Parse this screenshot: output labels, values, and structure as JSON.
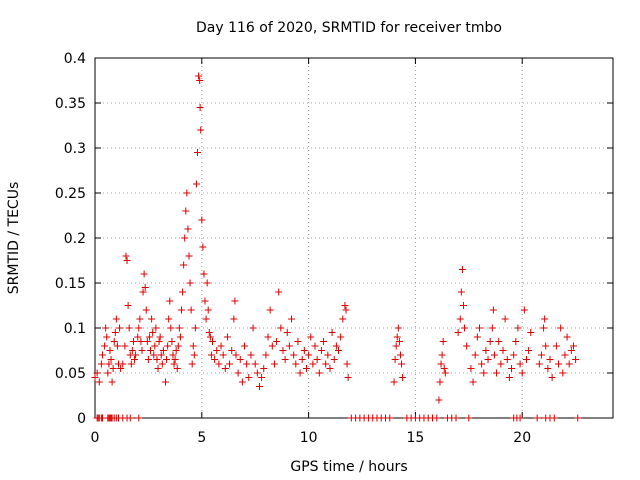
{
  "chart_data": {
    "type": "scatter",
    "title": "Day 116 of 2020, SRMTID for receiver tmbo",
    "xlabel": "GPS time / hours",
    "ylabel": "SRMTID / TECUs",
    "xlim": [
      0,
      24.25
    ],
    "ylim": [
      0,
      0.4
    ],
    "xticks": [
      0,
      5,
      10,
      15,
      20
    ],
    "yticks": [
      0,
      0.05,
      0.1,
      0.15,
      0.2,
      0.25,
      0.3,
      0.35,
      0.4
    ],
    "xtick_labels": [
      "0",
      "5",
      "10",
      "15",
      "20"
    ],
    "ytick_labels": [
      "0",
      "0.05",
      "0.1",
      "0.15",
      "0.2",
      "0.25",
      "0.3",
      "0.35",
      "0.4"
    ],
    "grid": true,
    "marker": "+",
    "color": "#dd0000",
    "series": [
      {
        "name": "SRMTID",
        "points": [
          [
            0.0,
            0.045
          ],
          [
            0.1,
            0.05
          ],
          [
            0.2,
            0.04
          ],
          [
            0.3,
            0.06
          ],
          [
            0.35,
            0.07
          ],
          [
            0.45,
            0.08
          ],
          [
            0.5,
            0.1
          ],
          [
            0.55,
            0.09
          ],
          [
            0.6,
            0.05
          ],
          [
            0.65,
            0.06
          ],
          [
            0.7,
            0.075
          ],
          [
            0.75,
            0.065
          ],
          [
            0.8,
            0.04
          ],
          [
            0.85,
            0.055
          ],
          [
            0.9,
            0.085
          ],
          [
            0.95,
            0.095
          ],
          [
            1.0,
            0.11
          ],
          [
            1.05,
            0.08
          ],
          [
            1.1,
            0.06
          ],
          [
            1.15,
            0.1
          ],
          [
            1.2,
            0.055
          ],
          [
            1.3,
            0.06
          ],
          [
            1.4,
            0.08
          ],
          [
            1.45,
            0.18
          ],
          [
            1.5,
            0.175
          ],
          [
            1.55,
            0.125
          ],
          [
            1.6,
            0.1
          ],
          [
            1.65,
            0.07
          ],
          [
            1.7,
            0.06
          ],
          [
            1.75,
            0.075
          ],
          [
            1.8,
            0.085
          ],
          [
            1.85,
            0.065
          ],
          [
            1.9,
            0.07
          ],
          [
            2.0,
            0.09
          ],
          [
            2.05,
            0.1
          ],
          [
            2.1,
            0.11
          ],
          [
            2.15,
            0.085
          ],
          [
            2.2,
            0.075
          ],
          [
            2.25,
            0.14
          ],
          [
            2.3,
            0.16
          ],
          [
            2.35,
            0.145
          ],
          [
            2.4,
            0.12
          ],
          [
            2.45,
            0.085
          ],
          [
            2.5,
            0.065
          ],
          [
            2.55,
            0.09
          ],
          [
            2.6,
            0.075
          ],
          [
            2.65,
            0.11
          ],
          [
            2.7,
            0.095
          ],
          [
            2.75,
            0.07
          ],
          [
            2.8,
            0.08
          ],
          [
            2.85,
            0.1
          ],
          [
            2.9,
            0.065
          ],
          [
            2.95,
            0.055
          ],
          [
            3.0,
            0.085
          ],
          [
            3.05,
            0.09
          ],
          [
            3.1,
            0.07
          ],
          [
            3.15,
            0.06
          ],
          [
            3.2,
            0.075
          ],
          [
            3.3,
            0.04
          ],
          [
            3.35,
            0.065
          ],
          [
            3.4,
            0.08
          ],
          [
            3.45,
            0.11
          ],
          [
            3.5,
            0.13
          ],
          [
            3.55,
            0.1
          ],
          [
            3.6,
            0.085
          ],
          [
            3.65,
            0.07
          ],
          [
            3.7,
            0.06
          ],
          [
            3.75,
            0.065
          ],
          [
            3.8,
            0.075
          ],
          [
            3.85,
            0.055
          ],
          [
            3.9,
            0.08
          ],
          [
            3.95,
            0.1
          ],
          [
            4.0,
            0.09
          ],
          [
            4.05,
            0.12
          ],
          [
            4.1,
            0.14
          ],
          [
            4.15,
            0.17
          ],
          [
            4.2,
            0.2
          ],
          [
            4.25,
            0.23
          ],
          [
            4.3,
            0.25
          ],
          [
            4.35,
            0.21
          ],
          [
            4.4,
            0.18
          ],
          [
            4.45,
            0.15
          ],
          [
            4.5,
            0.12
          ],
          [
            4.55,
            0.06
          ],
          [
            4.6,
            0.08
          ],
          [
            4.65,
            0.07
          ],
          [
            4.7,
            0.1
          ],
          [
            4.75,
            0.26
          ],
          [
            4.8,
            0.295
          ],
          [
            4.85,
            0.38
          ],
          [
            4.9,
            0.375
          ],
          [
            4.92,
            0.345
          ],
          [
            4.95,
            0.32
          ],
          [
            5.0,
            0.22
          ],
          [
            5.05,
            0.19
          ],
          [
            5.1,
            0.16
          ],
          [
            5.15,
            0.13
          ],
          [
            5.2,
            0.11
          ],
          [
            5.25,
            0.15
          ],
          [
            5.3,
            0.12
          ],
          [
            5.35,
            0.095
          ],
          [
            5.4,
            0.09
          ],
          [
            5.45,
            0.07
          ],
          [
            5.5,
            0.085
          ],
          [
            5.6,
            0.065
          ],
          [
            5.7,
            0.075
          ],
          [
            5.8,
            0.06
          ],
          [
            5.9,
            0.08
          ],
          [
            6.0,
            0.07
          ],
          [
            6.1,
            0.055
          ],
          [
            6.2,
            0.09
          ],
          [
            6.3,
            0.06
          ],
          [
            6.4,
            0.075
          ],
          [
            6.5,
            0.11
          ],
          [
            6.55,
            0.13
          ],
          [
            6.6,
            0.07
          ],
          [
            6.7,
            0.05
          ],
          [
            6.8,
            0.065
          ],
          [
            6.9,
            0.04
          ],
          [
            7.0,
            0.08
          ],
          [
            7.1,
            0.06
          ],
          [
            7.2,
            0.045
          ],
          [
            7.3,
            0.07
          ],
          [
            7.4,
            0.1
          ],
          [
            7.5,
            0.06
          ],
          [
            7.6,
            0.05
          ],
          [
            7.7,
            0.035
          ],
          [
            7.8,
            0.045
          ],
          [
            7.9,
            0.055
          ],
          [
            8.0,
            0.07
          ],
          [
            8.1,
            0.09
          ],
          [
            8.2,
            0.12
          ],
          [
            8.3,
            0.08
          ],
          [
            8.4,
            0.06
          ],
          [
            8.5,
            0.085
          ],
          [
            8.6,
            0.14
          ],
          [
            8.7,
            0.1
          ],
          [
            8.8,
            0.075
          ],
          [
            8.9,
            0.065
          ],
          [
            9.0,
            0.095
          ],
          [
            9.1,
            0.08
          ],
          [
            9.2,
            0.11
          ],
          [
            9.3,
            0.07
          ],
          [
            9.4,
            0.06
          ],
          [
            9.5,
            0.085
          ],
          [
            9.6,
            0.05
          ],
          [
            9.7,
            0.065
          ],
          [
            9.8,
            0.075
          ],
          [
            9.9,
            0.055
          ],
          [
            10.0,
            0.07
          ],
          [
            10.1,
            0.09
          ],
          [
            10.2,
            0.06
          ],
          [
            10.3,
            0.08
          ],
          [
            10.4,
            0.065
          ],
          [
            10.5,
            0.05
          ],
          [
            10.6,
            0.075
          ],
          [
            10.7,
            0.085
          ],
          [
            10.8,
            0.06
          ],
          [
            10.9,
            0.07
          ],
          [
            11.0,
            0.055
          ],
          [
            11.1,
            0.095
          ],
          [
            11.2,
            0.065
          ],
          [
            11.3,
            0.08
          ],
          [
            11.4,
            0.075
          ],
          [
            11.5,
            0.09
          ],
          [
            11.6,
            0.11
          ],
          [
            11.7,
            0.125
          ],
          [
            11.75,
            0.12
          ],
          [
            11.8,
            0.06
          ],
          [
            11.85,
            0.045
          ],
          [
            14.0,
            0.04
          ],
          [
            14.05,
            0.065
          ],
          [
            14.1,
            0.08
          ],
          [
            14.15,
            0.09
          ],
          [
            14.2,
            0.1
          ],
          [
            14.25,
            0.085
          ],
          [
            14.3,
            0.07
          ],
          [
            14.35,
            0.06
          ],
          [
            14.4,
            0.045
          ],
          [
            16.1,
            0.02
          ],
          [
            16.15,
            0.04
          ],
          [
            16.2,
            0.06
          ],
          [
            16.25,
            0.07
          ],
          [
            16.3,
            0.085
          ],
          [
            16.35,
            0.055
          ],
          [
            16.4,
            0.05
          ],
          [
            17.0,
            0.095
          ],
          [
            17.1,
            0.11
          ],
          [
            17.15,
            0.14
          ],
          [
            17.2,
            0.165
          ],
          [
            17.25,
            0.125
          ],
          [
            17.3,
            0.1
          ],
          [
            17.4,
            0.08
          ],
          [
            17.6,
            0.055
          ],
          [
            17.7,
            0.04
          ],
          [
            17.8,
            0.07
          ],
          [
            17.9,
            0.09
          ],
          [
            18.0,
            0.1
          ],
          [
            18.1,
            0.06
          ],
          [
            18.2,
            0.05
          ],
          [
            18.3,
            0.075
          ],
          [
            18.4,
            0.065
          ],
          [
            18.5,
            0.085
          ],
          [
            18.6,
            0.1
          ],
          [
            18.65,
            0.12
          ],
          [
            18.7,
            0.07
          ],
          [
            18.8,
            0.05
          ],
          [
            18.9,
            0.085
          ],
          [
            19.0,
            0.06
          ],
          [
            19.1,
            0.075
          ],
          [
            19.2,
            0.11
          ],
          [
            19.3,
            0.065
          ],
          [
            19.4,
            0.045
          ],
          [
            19.5,
            0.055
          ],
          [
            19.6,
            0.07
          ],
          [
            19.7,
            0.085
          ],
          [
            19.8,
            0.1
          ],
          [
            19.9,
            0.06
          ],
          [
            20.0,
            0.05
          ],
          [
            20.1,
            0.12
          ],
          [
            20.2,
            0.065
          ],
          [
            20.3,
            0.075
          ],
          [
            20.4,
            0.095
          ],
          [
            20.8,
            0.06
          ],
          [
            20.9,
            0.07
          ],
          [
            21.0,
            0.1
          ],
          [
            21.05,
            0.11
          ],
          [
            21.1,
            0.08
          ],
          [
            21.2,
            0.055
          ],
          [
            21.3,
            0.065
          ],
          [
            21.4,
            0.045
          ],
          [
            21.6,
            0.08
          ],
          [
            21.7,
            0.06
          ],
          [
            21.8,
            0.1
          ],
          [
            21.9,
            0.05
          ],
          [
            22.0,
            0.07
          ],
          [
            22.1,
            0.09
          ],
          [
            22.2,
            0.06
          ],
          [
            22.3,
            0.075
          ],
          [
            22.4,
            0.08
          ],
          [
            22.5,
            0.065
          ]
        ],
        "zero_points": [
          0.1,
          0.15,
          0.2,
          0.3,
          0.35,
          0.6,
          0.65,
          0.7,
          0.75,
          0.8,
          0.9,
          1.0,
          1.1,
          1.3,
          1.5,
          1.65,
          2.05,
          12.0,
          12.2,
          12.4,
          12.6,
          12.8,
          13.0,
          13.2,
          13.4,
          13.6,
          13.8,
          14.6,
          14.8,
          15.0,
          15.2,
          15.4,
          15.6,
          15.8,
          16.0,
          16.5,
          16.7,
          16.9,
          17.5,
          19.6,
          19.75,
          19.9,
          20.7,
          21.1,
          21.3,
          21.5,
          22.6
        ]
      }
    ]
  }
}
